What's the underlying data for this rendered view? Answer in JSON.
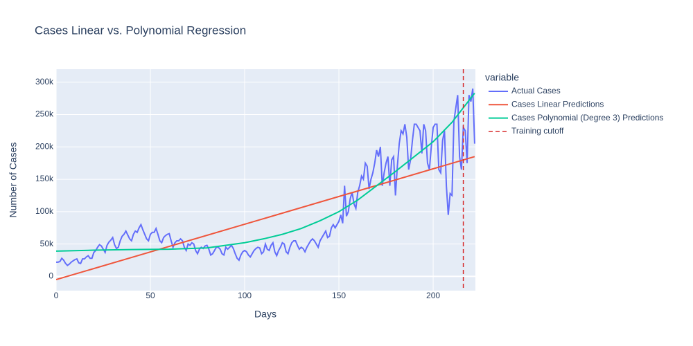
{
  "chart_data": {
    "type": "line",
    "title": "Cases Linear vs. Polynomial Regression",
    "x_label": "Days",
    "y_label": "Number of Cases",
    "legend_title": "variable",
    "legend_position": "right",
    "grid": true,
    "xlim": [
      0,
      222.4
    ],
    "ylim": [
      -22000,
      320000
    ],
    "xticks": [
      0,
      50,
      100,
      150,
      200
    ],
    "yticks": [
      {
        "value": 0,
        "label": "0"
      },
      {
        "value": 50000,
        "label": "50k"
      },
      {
        "value": 100000,
        "label": "100k"
      },
      {
        "value": 150000,
        "label": "150k"
      },
      {
        "value": 200000,
        "label": "200k"
      },
      {
        "value": 250000,
        "label": "250k"
      },
      {
        "value": 300000,
        "label": "300k"
      }
    ],
    "series": [
      {
        "name": "Actual Cases",
        "color": "#636efa",
        "x": [
          0,
          1,
          2,
          3,
          4,
          5,
          6,
          7,
          8,
          9,
          10,
          11,
          12,
          13,
          14,
          15,
          16,
          17,
          18,
          19,
          20,
          21,
          22,
          23,
          24,
          25,
          26,
          27,
          28,
          29,
          30,
          31,
          32,
          33,
          34,
          35,
          36,
          37,
          38,
          39,
          40,
          41,
          42,
          43,
          44,
          45,
          46,
          47,
          48,
          49,
          50,
          51,
          52,
          53,
          54,
          55,
          56,
          57,
          58,
          59,
          60,
          61,
          62,
          63,
          64,
          65,
          66,
          67,
          68,
          69,
          70,
          71,
          72,
          73,
          74,
          75,
          76,
          77,
          78,
          79,
          80,
          81,
          82,
          83,
          84,
          85,
          86,
          87,
          88,
          89,
          90,
          91,
          92,
          93,
          94,
          95,
          96,
          97,
          98,
          99,
          100,
          101,
          102,
          103,
          104,
          105,
          106,
          107,
          108,
          109,
          110,
          111,
          112,
          113,
          114,
          115,
          116,
          117,
          118,
          119,
          120,
          121,
          122,
          123,
          124,
          125,
          126,
          127,
          128,
          129,
          130,
          131,
          132,
          133,
          134,
          135,
          136,
          137,
          138,
          139,
          140,
          141,
          142,
          143,
          144,
          145,
          146,
          147,
          148,
          149,
          150,
          151,
          152,
          153,
          154,
          155,
          156,
          157,
          158,
          159,
          160,
          161,
          162,
          163,
          164,
          165,
          166,
          167,
          168,
          169,
          170,
          171,
          172,
          173,
          174,
          175,
          176,
          177,
          178,
          179,
          180,
          181,
          182,
          183,
          184,
          185,
          186,
          187,
          188,
          189,
          190,
          191,
          192,
          193,
          194,
          195,
          196,
          197,
          198,
          199,
          200,
          201,
          202,
          203,
          204,
          205,
          206,
          207,
          208,
          209,
          210,
          211,
          212,
          213,
          214,
          215,
          216,
          217,
          218,
          219,
          220,
          221,
          222
        ],
        "values": [
          22000,
          22000,
          23000,
          28000,
          25000,
          20000,
          17000,
          19000,
          22000,
          24000,
          26000,
          27000,
          21000,
          20000,
          27000,
          27000,
          30000,
          32000,
          28000,
          28000,
          37000,
          40000,
          45000,
          49000,
          47000,
          42000,
          37000,
          48000,
          53000,
          56000,
          60000,
          49000,
          43000,
          45000,
          55000,
          62000,
          65000,
          70000,
          64000,
          58000,
          55000,
          65000,
          70000,
          68000,
          75000,
          80000,
          72000,
          65000,
          58000,
          55000,
          65000,
          68000,
          68000,
          74000,
          65000,
          55000,
          52000,
          60000,
          63000,
          65000,
          66000,
          55000,
          45000,
          52000,
          55000,
          55000,
          58000,
          55000,
          45000,
          40000,
          50000,
          48000,
          52000,
          50000,
          40000,
          35000,
          42000,
          45000,
          43000,
          47000,
          48000,
          42000,
          33000,
          35000,
          40000,
          45000,
          45000,
          42000,
          35000,
          33000,
          45000,
          42000,
          45000,
          48000,
          43000,
          35000,
          28000,
          25000,
          33000,
          38000,
          40000,
          38000,
          33000,
          30000,
          35000,
          40000,
          43000,
          45000,
          44000,
          35000,
          38000,
          50000,
          42000,
          40000,
          48000,
          52000,
          38000,
          32000,
          40000,
          45000,
          52000,
          50000,
          38000,
          35000,
          45000,
          52000,
          55000,
          55000,
          48000,
          42000,
          45000,
          43000,
          38000,
          45000,
          50000,
          55000,
          58000,
          55000,
          50000,
          45000,
          55000,
          60000,
          65000,
          70000,
          60000,
          62000,
          75000,
          80000,
          75000,
          80000,
          85000,
          95000,
          82000,
          140000,
          93000,
          100000,
          120000,
          130000,
          112000,
          105000,
          130000,
          140000,
          155000,
          150000,
          175000,
          170000,
          135000,
          150000,
          160000,
          175000,
          195000,
          185000,
          200000,
          140000,
          160000,
          175000,
          185000,
          140000,
          180000,
          185000,
          125000,
          170000,
          205000,
          225000,
          220000,
          235000,
          215000,
          165000,
          180000,
          210000,
          235000,
          235000,
          230000,
          225000,
          190000,
          235000,
          225000,
          175000,
          165000,
          200000,
          230000,
          235000,
          235000,
          165000,
          160000,
          210000,
          225000,
          140000,
          95000,
          128000,
          125000,
          240000,
          260000,
          280000,
          185000,
          165000,
          230000,
          225000,
          175000,
          280000,
          270000,
          290000,
          205000
        ]
      },
      {
        "name": "Cases Linear Predictions",
        "color": "#ef553b",
        "x": [
          0,
          222
        ],
        "values": [
          -5000,
          185000
        ]
      },
      {
        "name": "Cases Polynomial (Degree 3) Predictions",
        "color": "#00cc96",
        "x": [
          0,
          20,
          40,
          60,
          80,
          100,
          110,
          120,
          130,
          140,
          150,
          160,
          170,
          180,
          190,
          200,
          210,
          222
        ],
        "values": [
          39000,
          40500,
          41500,
          42000,
          44000,
          52000,
          58000,
          65000,
          74000,
          86000,
          100000,
          118000,
          140000,
          162000,
          185000,
          208000,
          238000,
          283000
        ]
      }
    ],
    "vline": {
      "name": "Training cutoff",
      "x": 216,
      "color": "#d62728"
    }
  }
}
